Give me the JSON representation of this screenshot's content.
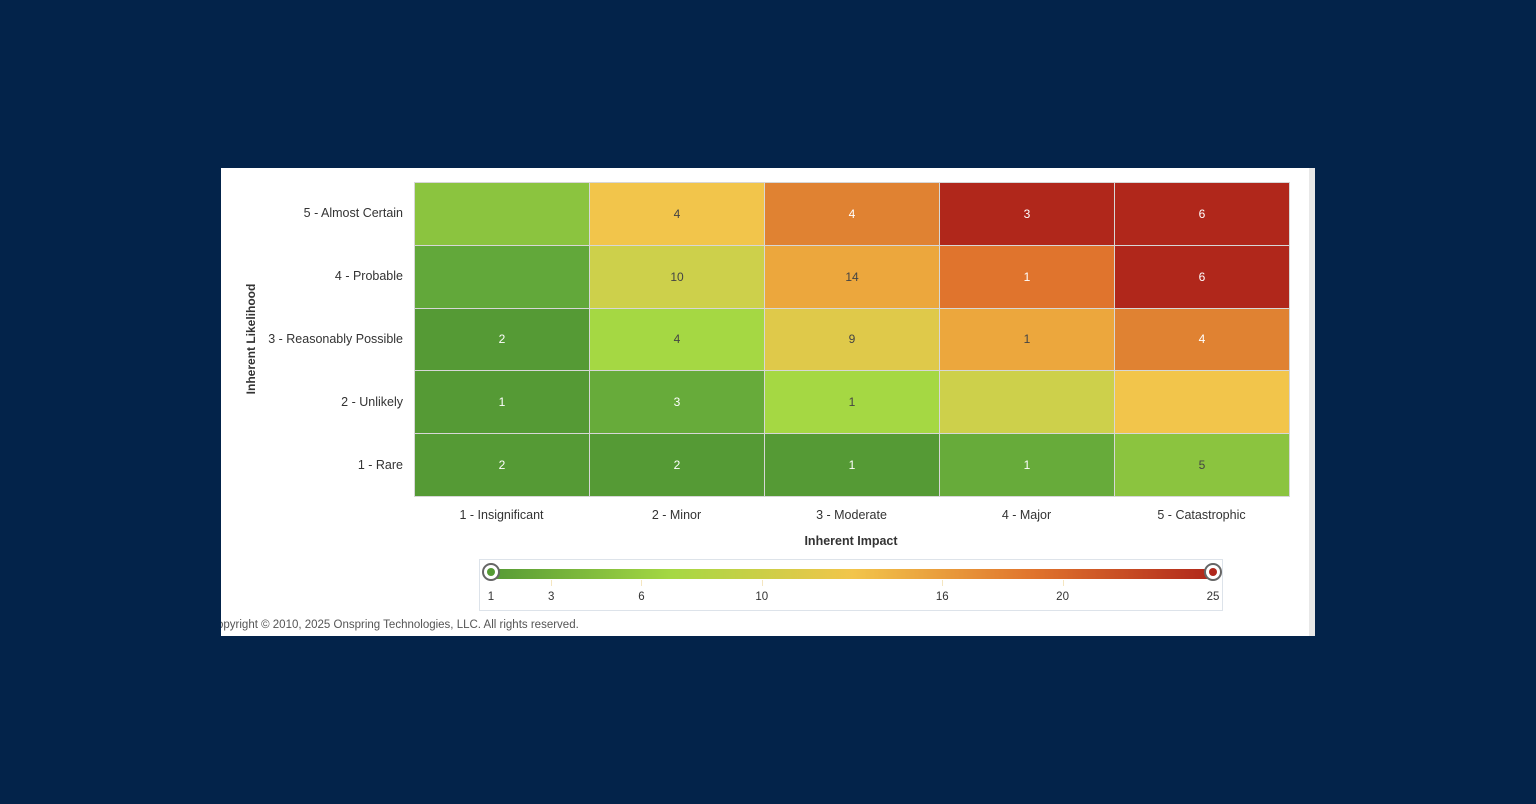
{
  "chart_data": {
    "type": "heatmap",
    "xlabel": "Inherent Impact",
    "ylabel": "Inherent Likelihood",
    "x_categories": [
      "1 - Insignificant",
      "2 - Minor",
      "3 - Moderate",
      "4 - Major",
      "5 - Catastrophic"
    ],
    "y_categories": [
      "5 - Almost Certain",
      "4 - Probable",
      "3 - Reasonably Possible",
      "2 - Unlikely",
      "1 - Rare"
    ],
    "values": [
      [
        null,
        4,
        4,
        3,
        6
      ],
      [
        null,
        10,
        14,
        1,
        6
      ],
      [
        2,
        4,
        9,
        1,
        4
      ],
      [
        1,
        3,
        1,
        null,
        null
      ],
      [
        2,
        2,
        1,
        1,
        5
      ]
    ],
    "cell_colors": [
      [
        "#8bc43f",
        "#f2c54b",
        "#e08232",
        "#b0271b",
        "#b0271b"
      ],
      [
        "#62a83a",
        "#cdd04b",
        "#eca73d",
        "#e0742d",
        "#b0271b"
      ],
      [
        "#559a35",
        "#a5d843",
        "#dfc94a",
        "#eca73d",
        "#e08232"
      ],
      [
        "#559a35",
        "#67ab3a",
        "#a5d843",
        "#cdd04b",
        "#f2c54b"
      ],
      [
        "#559a35",
        "#559a35",
        "#559a35",
        "#67ab3a",
        "#8bc43f"
      ]
    ],
    "text_colors": [
      [
        "#333333",
        "#444444",
        "#ffffff",
        "#ffffff",
        "#ffffff"
      ],
      [
        "#ffffff",
        "#444444",
        "#444444",
        "#ffffff",
        "#ffffff"
      ],
      [
        "#ffffff",
        "#444444",
        "#444444",
        "#444444",
        "#ffffff"
      ],
      [
        "#ffffff",
        "#ffffff",
        "#444444",
        "#444444",
        "#444444"
      ],
      [
        "#ffffff",
        "#ffffff",
        "#ffffff",
        "#ffffff",
        "#444444"
      ]
    ],
    "color_scale": {
      "range": [
        1,
        25
      ],
      "ticks": [
        1,
        3,
        6,
        10,
        16,
        20,
        25
      ],
      "gradient": [
        "#559a35",
        "#a5d843",
        "#f2c54b",
        "#e0742d",
        "#b0271b"
      ]
    }
  },
  "footer": {
    "copyright": "opyright © 2010, 2025 Onspring Technologies, LLC. All rights reserved."
  }
}
